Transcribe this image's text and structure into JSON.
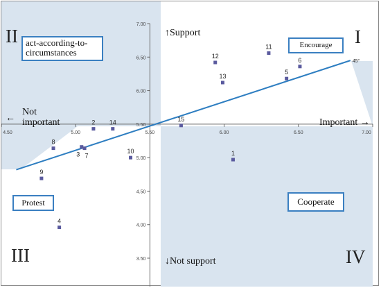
{
  "chart_data": {
    "type": "scatter",
    "x_ticks": [
      "4.50",
      "5.00",
      "5.50",
      "6.00",
      "6.50",
      "7.00"
    ],
    "y_ticks": [
      "3.50",
      "4.00",
      "4.50",
      "5.00",
      "5.50",
      "6.00",
      "6.50",
      "7.00"
    ],
    "xlim": [
      4.5,
      7.0
    ],
    "ylim": [
      3.5,
      7.0
    ],
    "axis_cross": {
      "x": 5.5,
      "y": 5.5
    },
    "points": [
      {
        "label": "1",
        "x": 6.06,
        "y": 4.97
      },
      {
        "label": "2",
        "x": 5.12,
        "y": 5.43
      },
      {
        "label": "3",
        "x": 5.04,
        "y": 5.16
      },
      {
        "label": "4",
        "x": 4.89,
        "y": 3.96
      },
      {
        "label": "5",
        "x": 6.42,
        "y": 6.18
      },
      {
        "label": "6",
        "x": 6.51,
        "y": 6.36
      },
      {
        "label": "7",
        "x": 5.06,
        "y": 5.14
      },
      {
        "label": "8",
        "x": 4.85,
        "y": 5.14
      },
      {
        "label": "9",
        "x": 4.77,
        "y": 4.69
      },
      {
        "label": "10",
        "x": 5.37,
        "y": 5.0
      },
      {
        "label": "11",
        "x": 6.3,
        "y": 6.56
      },
      {
        "label": "12",
        "x": 5.94,
        "y": 6.42
      },
      {
        "label": "13",
        "x": 5.99,
        "y": 6.12
      },
      {
        "label": "14",
        "x": 5.25,
        "y": 5.43
      },
      {
        "label": "15",
        "x": 5.71,
        "y": 5.48
      }
    ],
    "reference_line": {
      "label": "45°",
      "from": [
        4.6,
        4.82
      ],
      "to": [
        6.85,
        6.45
      ]
    },
    "colors": {
      "point": "#5a5a9e",
      "line": "#2e7ec1",
      "shade": "#d9e4ef",
      "box_border": "#3a7fc1"
    }
  },
  "labels": {
    "support": "Support",
    "not_support": "Not support",
    "important": "Important",
    "not_important": "Not\nimportant",
    "quadrant_boxes": {
      "act": "act-according-to-\ncircumstances",
      "encourage": "Encourage",
      "protest": "Protest",
      "cooperate": "Cooperate"
    },
    "roman": {
      "q1": "I",
      "q2": "II",
      "q3": "III",
      "q4": "IV"
    }
  }
}
